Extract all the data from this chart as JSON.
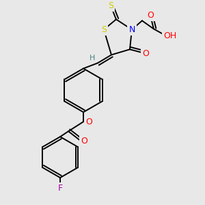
{
  "bg_color": "#e8e8e8",
  "atom_colors": {
    "C": "#000000",
    "H": "#4a8080",
    "N": "#0000ff",
    "O": "#ff0000",
    "S": "#cccc00",
    "F": "#aa00aa"
  },
  "bond_color": "#000000",
  "figsize": [
    3.0,
    3.0
  ],
  "dpi": 100
}
